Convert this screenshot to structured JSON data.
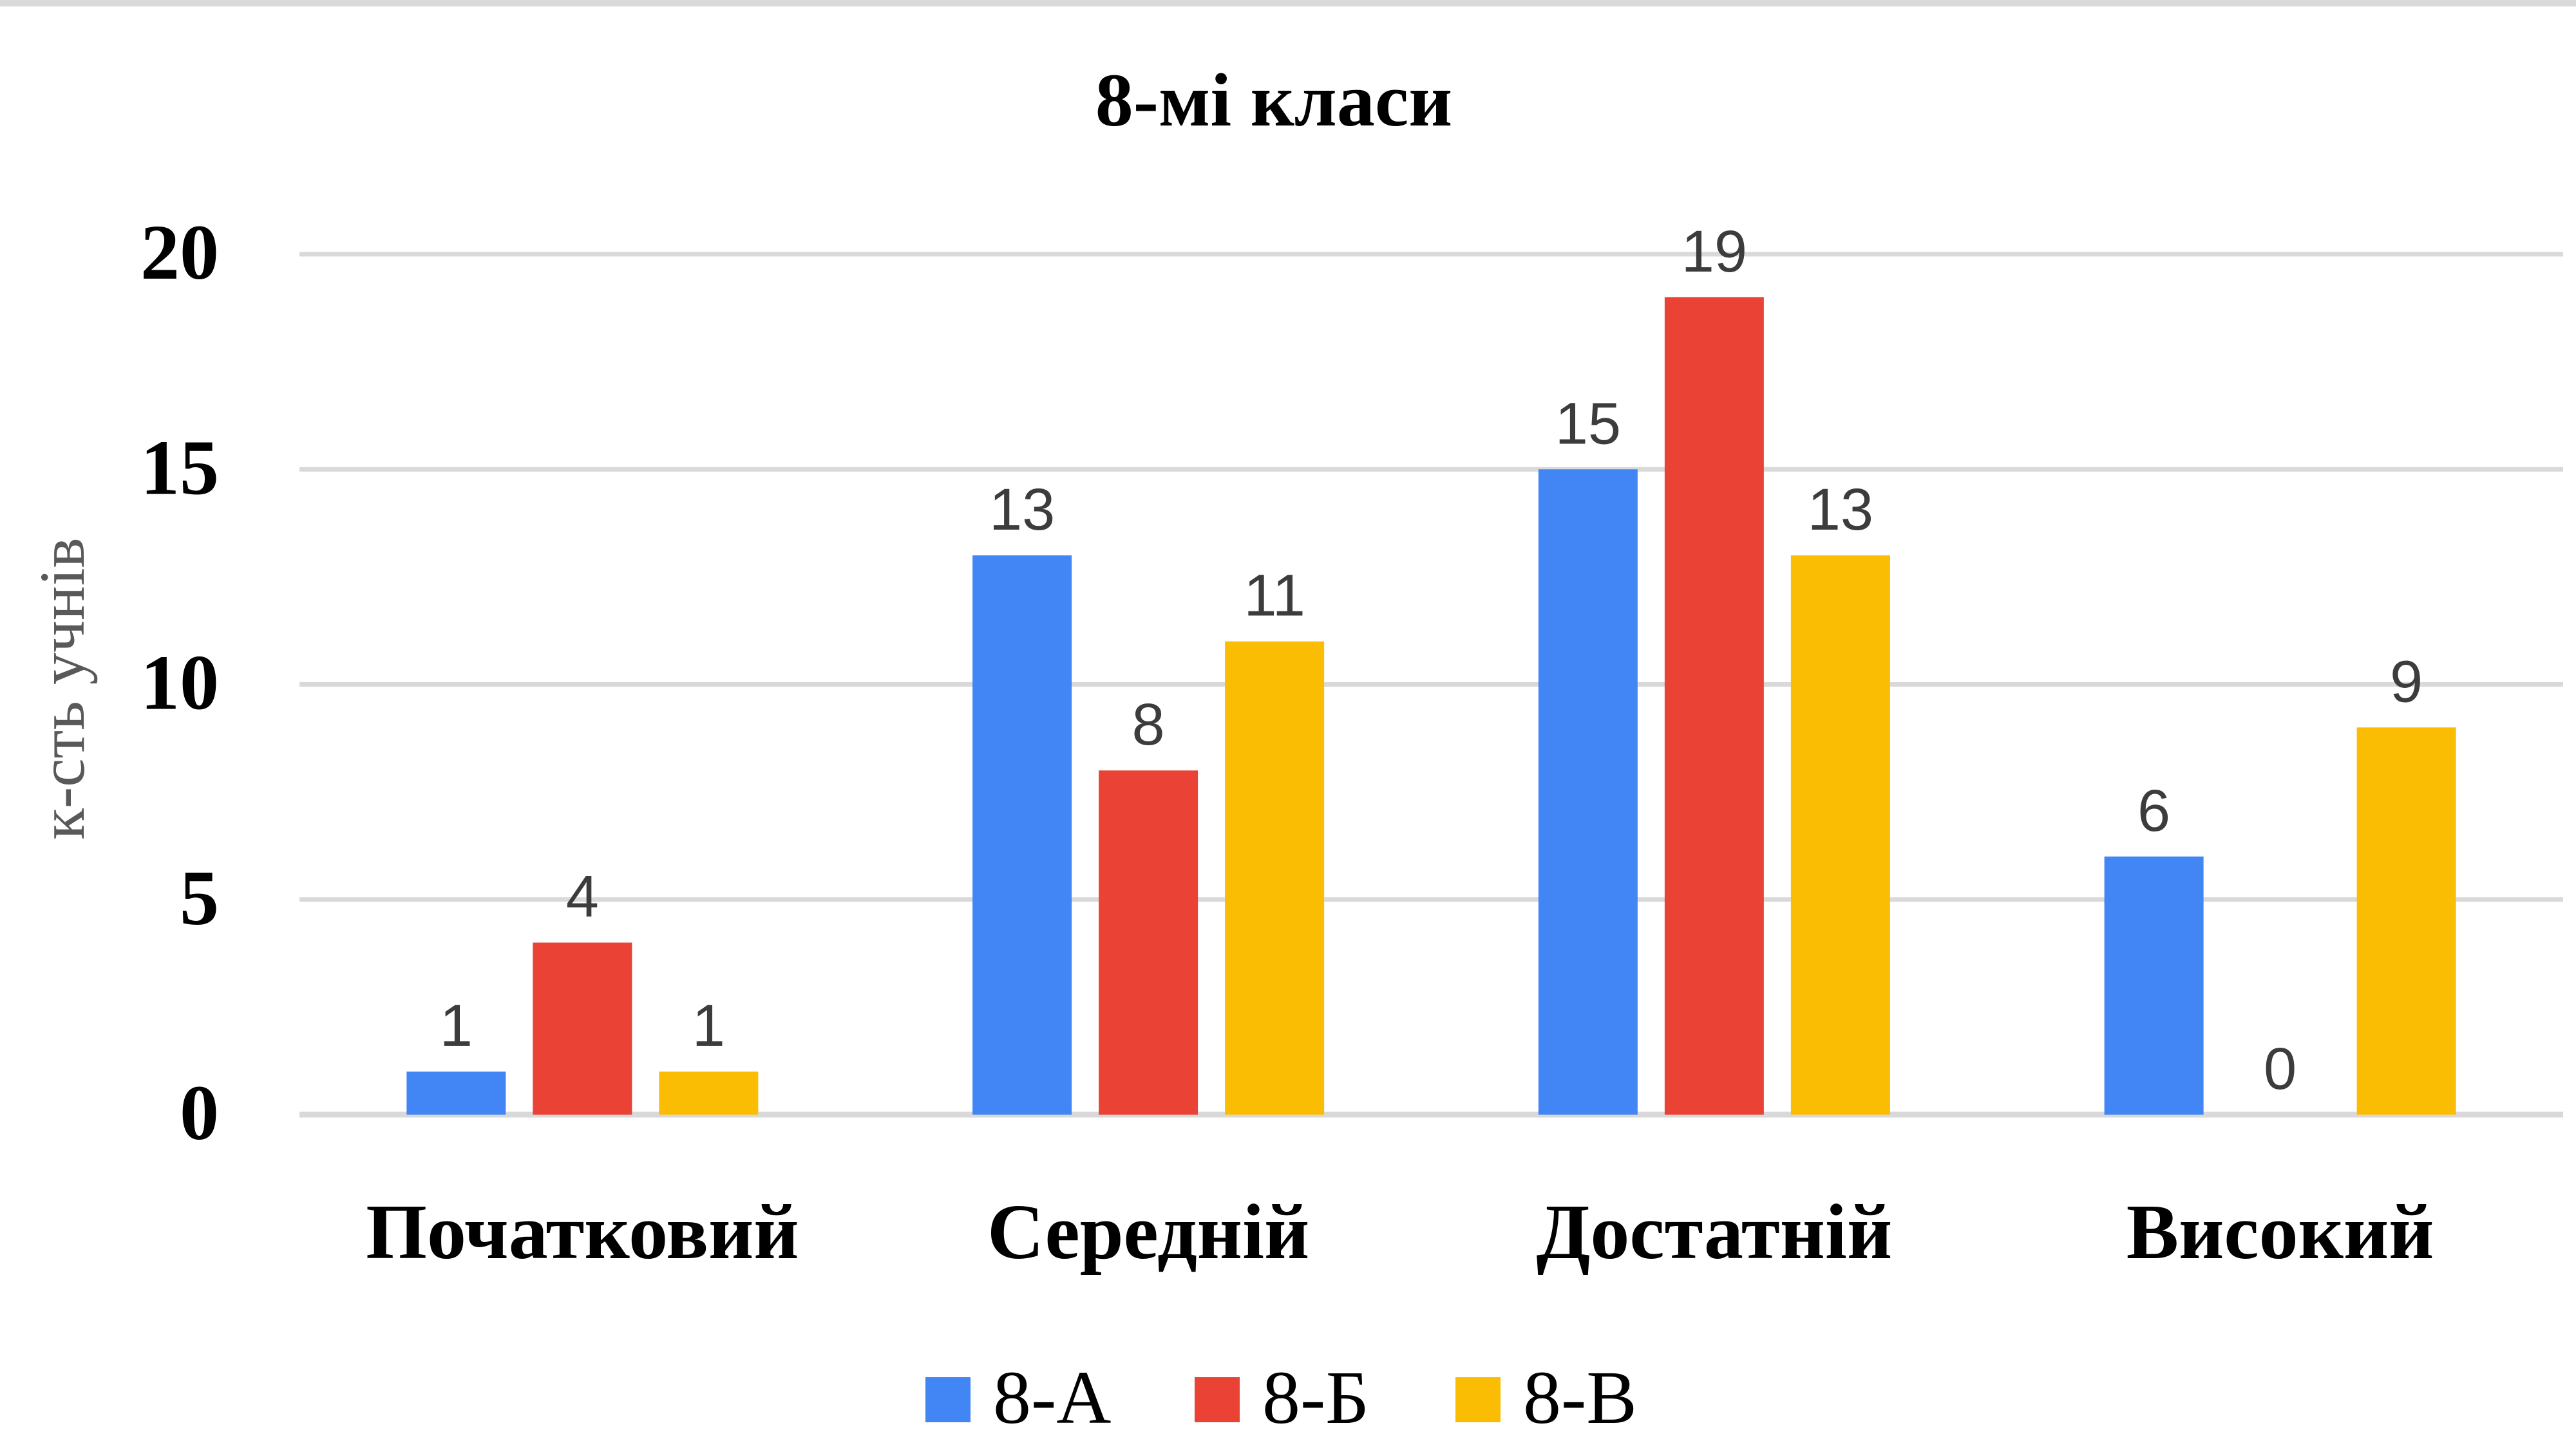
{
  "chart_data": {
    "type": "bar",
    "title": "8-мі класи",
    "ylabel": "к-сть учнів",
    "xlabel": "",
    "categories": [
      "Початковий",
      "Середній",
      "Достатній",
      "Високий"
    ],
    "series": [
      {
        "name": "8-А",
        "color": "#4285f4",
        "values": [
          1,
          13,
          15,
          6
        ]
      },
      {
        "name": "8-Б",
        "color": "#ea4335",
        "values": [
          4,
          8,
          19,
          0
        ]
      },
      {
        "name": "8-В",
        "color": "#fbbc04",
        "values": [
          1,
          11,
          13,
          9
        ]
      }
    ],
    "ylim": [
      0,
      20
    ],
    "yticks": [
      0,
      5,
      10,
      15,
      20
    ],
    "grid": true,
    "legend_position": "bottom",
    "data_labels": true
  }
}
